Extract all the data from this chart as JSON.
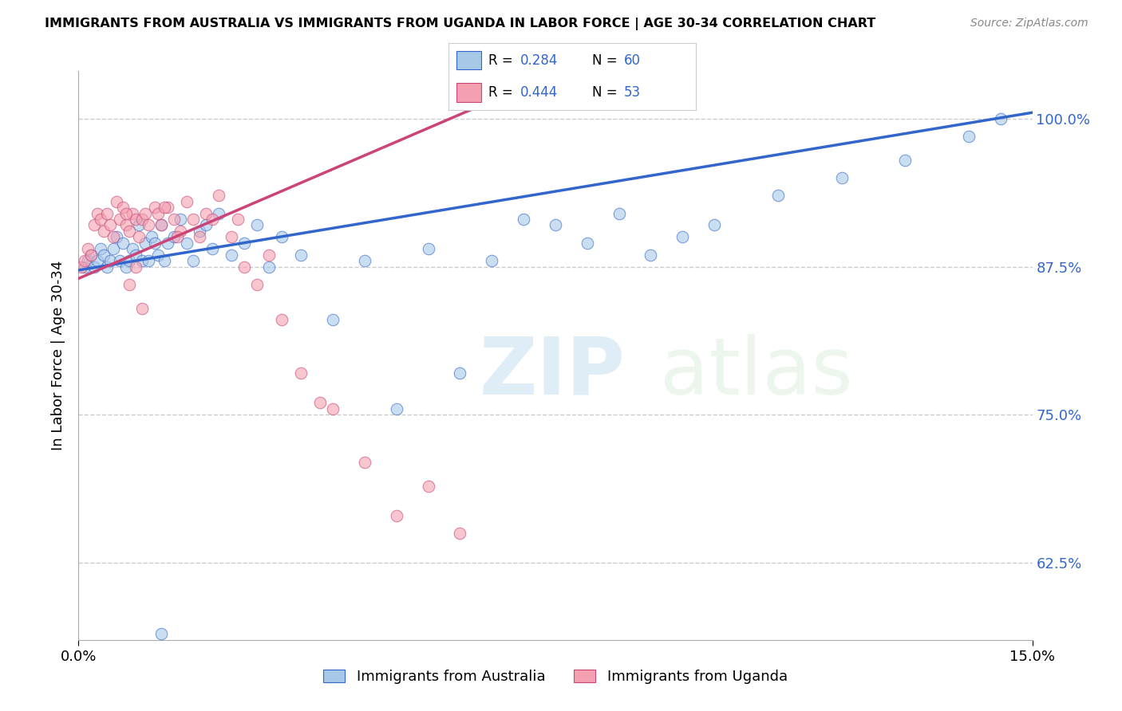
{
  "title": "IMMIGRANTS FROM AUSTRALIA VS IMMIGRANTS FROM UGANDA IN LABOR FORCE | AGE 30-34 CORRELATION CHART",
  "source": "Source: ZipAtlas.com",
  "ylabel": "In Labor Force | Age 30-34",
  "xlim": [
    0.0,
    15.0
  ],
  "ylim": [
    56.0,
    104.0
  ],
  "x_tick_labels": [
    "0.0%",
    "15.0%"
  ],
  "y_ticks": [
    62.5,
    75.0,
    87.5,
    100.0
  ],
  "y_tick_labels": [
    "62.5%",
    "75.0%",
    "87.5%",
    "100.0%"
  ],
  "australia_color": "#a8c8e8",
  "uganda_color": "#f4a0b0",
  "australia_line_color": "#3366cc",
  "uganda_line_color": "#cc4477",
  "australia_R": 0.284,
  "australia_N": 60,
  "uganda_R": 0.444,
  "uganda_N": 53,
  "watermark_zip": "ZIP",
  "watermark_atlas": "atlas",
  "aus_x": [
    0.1,
    0.15,
    0.2,
    0.25,
    0.3,
    0.35,
    0.4,
    0.45,
    0.5,
    0.55,
    0.6,
    0.65,
    0.7,
    0.75,
    0.8,
    0.85,
    0.9,
    0.95,
    1.0,
    1.05,
    1.1,
    1.15,
    1.2,
    1.25,
    1.3,
    1.35,
    1.4,
    1.5,
    1.6,
    1.7,
    1.8,
    1.9,
    2.0,
    2.1,
    2.2,
    2.4,
    2.6,
    2.8,
    3.0,
    3.2,
    3.5,
    4.0,
    4.5,
    5.0,
    5.5,
    6.0,
    6.5,
    7.0,
    7.5,
    8.0,
    8.5,
    9.0,
    9.5,
    10.0,
    11.0,
    12.0,
    13.0,
    14.0,
    14.5,
    1.3
  ],
  "aus_y": [
    87.5,
    88.0,
    88.5,
    87.5,
    88.0,
    89.0,
    88.5,
    87.5,
    88.0,
    89.0,
    90.0,
    88.0,
    89.5,
    87.5,
    88.0,
    89.0,
    88.5,
    91.0,
    88.0,
    89.5,
    88.0,
    90.0,
    89.5,
    88.5,
    91.0,
    88.0,
    89.5,
    90.0,
    91.5,
    89.5,
    88.0,
    90.5,
    91.0,
    89.0,
    92.0,
    88.5,
    89.5,
    91.0,
    87.5,
    90.0,
    88.5,
    83.0,
    88.0,
    75.5,
    89.0,
    78.5,
    88.0,
    91.5,
    91.0,
    89.5,
    92.0,
    88.5,
    90.0,
    91.0,
    93.5,
    95.0,
    96.5,
    98.5,
    100.0,
    56.5
  ],
  "uga_x": [
    0.05,
    0.1,
    0.15,
    0.2,
    0.25,
    0.3,
    0.35,
    0.4,
    0.45,
    0.5,
    0.55,
    0.6,
    0.65,
    0.7,
    0.75,
    0.8,
    0.85,
    0.9,
    0.95,
    1.0,
    1.05,
    1.1,
    1.2,
    1.3,
    1.4,
    1.5,
    1.6,
    1.7,
    1.8,
    1.9,
    2.0,
    2.1,
    2.2,
    2.4,
    2.6,
    2.8,
    3.0,
    3.2,
    3.5,
    4.0,
    4.5,
    5.0,
    5.5,
    6.0,
    3.8,
    1.25,
    0.9,
    2.5,
    1.35,
    1.55,
    0.8,
    1.0,
    0.75
  ],
  "uga_y": [
    87.5,
    88.0,
    89.0,
    88.5,
    91.0,
    92.0,
    91.5,
    90.5,
    92.0,
    91.0,
    90.0,
    93.0,
    91.5,
    92.5,
    91.0,
    90.5,
    92.0,
    91.5,
    90.0,
    91.5,
    92.0,
    91.0,
    92.5,
    91.0,
    92.5,
    91.5,
    90.5,
    93.0,
    91.5,
    90.0,
    92.0,
    91.5,
    93.5,
    90.0,
    87.5,
    86.0,
    88.5,
    83.0,
    78.5,
    75.5,
    71.0,
    66.5,
    69.0,
    65.0,
    76.0,
    92.0,
    87.5,
    91.5,
    92.5,
    90.0,
    86.0,
    84.0,
    92.0
  ]
}
